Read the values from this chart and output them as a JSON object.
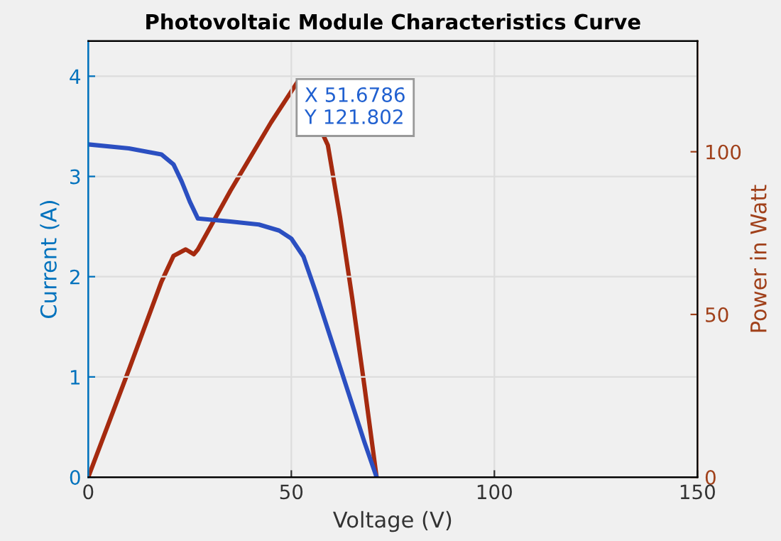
{
  "chart_data": {
    "type": "line",
    "title": "Photovoltaic Module Characteristics Curve",
    "xlabel": "Voltage (V)",
    "ylabel": "Current (A)",
    "y2label": "Power in Watt",
    "xlim": [
      0,
      150
    ],
    "xticks": [
      0,
      50,
      100,
      150
    ],
    "ylim": [
      0,
      4.35
    ],
    "yticks": [
      0,
      1,
      2,
      3,
      4
    ],
    "y2lim": [
      0,
      134
    ],
    "y2ticks": [
      0,
      50,
      100
    ],
    "grid": true,
    "legend": false,
    "series": [
      {
        "color": "#2b4fc1",
        "x": [
          0,
          10,
          18,
          21,
          23,
          25,
          27,
          35,
          42,
          47,
          50,
          53,
          56,
          60,
          64,
          68,
          71
        ],
        "values": [
          3.32,
          3.28,
          3.22,
          3.12,
          2.95,
          2.75,
          2.58,
          2.55,
          2.52,
          2.46,
          2.38,
          2.2,
          1.85,
          1.35,
          0.85,
          0.35,
          0
        ]
      },
      {
        "color": "#a52a0f",
        "axis": "y2",
        "x": [
          0,
          10,
          18,
          21,
          24,
          26,
          27,
          35,
          45,
          51.7,
          59,
          62,
          65,
          68,
          71
        ],
        "values": [
          0,
          33,
          60,
          68,
          70,
          68.5,
          70,
          88,
          109,
          121.8,
          102,
          80,
          55,
          28,
          0
        ]
      }
    ],
    "annotations": [
      "X 51.6786\nY 121.802"
    ]
  }
}
